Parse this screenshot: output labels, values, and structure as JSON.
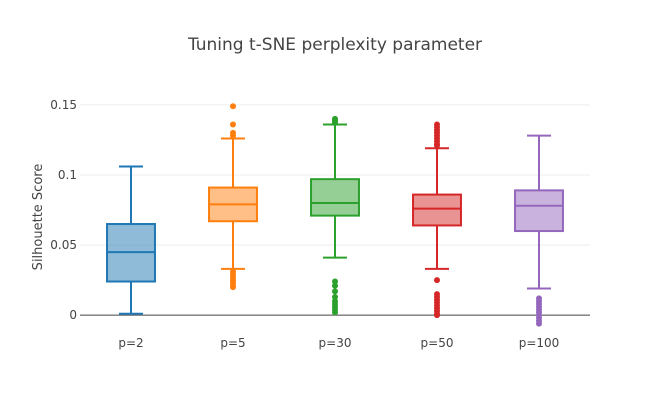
{
  "chart_data": {
    "type": "box",
    "title": "Tuning t-SNE perplexity parameter",
    "xlabel": "",
    "ylabel": "Silhouette Score",
    "ylim": [
      -0.007,
      0.162
    ],
    "yticks": [
      0,
      0.05,
      0.1,
      0.15
    ],
    "ytick_labels": [
      "0",
      "0.05",
      "0.1",
      "0.15"
    ],
    "categories": [
      "p=2",
      "p=5",
      "p=30",
      "p=50",
      "p=100"
    ],
    "series": [
      {
        "name": "p=2",
        "color": "#1f77b4",
        "whisker_low": 0.001,
        "q1": 0.024,
        "median": 0.045,
        "q3": 0.065,
        "whisker_high": 0.106,
        "outliers": []
      },
      {
        "name": "p=5",
        "color": "#ff7f0e",
        "whisker_low": 0.033,
        "q1": 0.067,
        "median": 0.079,
        "q3": 0.091,
        "whisker_high": 0.126,
        "outliers": [
          0.149,
          0.136,
          0.13,
          0.128,
          0.031,
          0.029,
          0.027,
          0.025,
          0.023,
          0.021,
          0.02
        ]
      },
      {
        "name": "p=30",
        "color": "#2ca02c",
        "whisker_low": 0.041,
        "q1": 0.071,
        "median": 0.08,
        "q3": 0.097,
        "whisker_high": 0.136,
        "outliers": [
          0.14,
          0.139,
          0.138,
          0.137,
          0.024,
          0.021,
          0.017,
          0.013,
          0.01,
          0.008,
          0.006,
          0.004,
          0.002
        ]
      },
      {
        "name": "p=50",
        "color": "#d62728",
        "whisker_low": 0.033,
        "q1": 0.064,
        "median": 0.076,
        "q3": 0.086,
        "whisker_high": 0.119,
        "outliers": [
          0.136,
          0.134,
          0.132,
          0.13,
          0.128,
          0.126,
          0.124,
          0.122,
          0.121,
          0.025,
          0.015,
          0.013,
          0.011,
          0.009,
          0.007,
          0.005,
          0.003,
          0.001,
          0.0
        ]
      },
      {
        "name": "p=100",
        "color": "#9467bd",
        "whisker_low": 0.019,
        "q1": 0.06,
        "median": 0.078,
        "q3": 0.089,
        "whisker_high": 0.128,
        "outliers": [
          0.012,
          0.01,
          0.008,
          0.006,
          0.004,
          0.002,
          0.0,
          -0.002,
          -0.004,
          -0.006
        ]
      }
    ]
  }
}
